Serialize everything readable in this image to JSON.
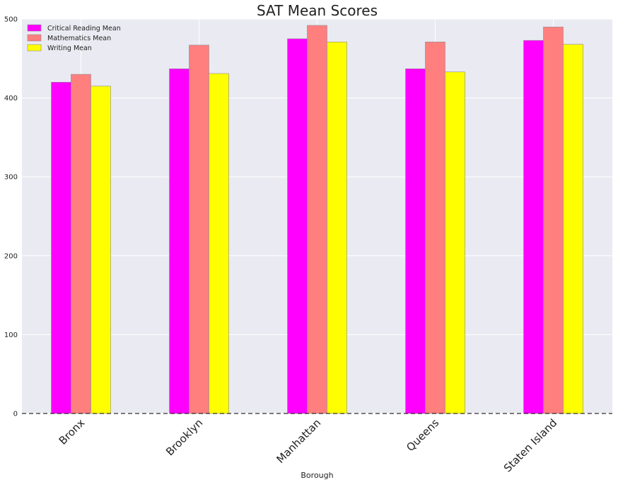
{
  "chart_data": {
    "type": "bar",
    "title": "SAT Mean Scores",
    "xlabel": "Borough",
    "ylabel": "",
    "categories": [
      "Bronx",
      "Brooklyn",
      "Manhattan",
      "Queens",
      "Staten Island"
    ],
    "series": [
      {
        "name": "Critical Reading Mean",
        "color": "#ff00ff",
        "values": [
          420,
          437,
          475,
          437,
          473
        ]
      },
      {
        "name": "Mathematics Mean",
        "color": "#ff7f7f",
        "values": [
          430,
          467,
          492,
          471,
          490
        ]
      },
      {
        "name": "Writing Mean",
        "color": "#ffff00",
        "values": [
          415,
          431,
          471,
          433,
          468
        ]
      }
    ],
    "ylim": [
      0,
      500
    ],
    "yticks": [
      0,
      100,
      200,
      300,
      400,
      500
    ],
    "grid": true,
    "legend_position": "top-left",
    "background_color": "#eaeaf2",
    "grid_color": "#ffffff",
    "baseline": "dashed"
  }
}
